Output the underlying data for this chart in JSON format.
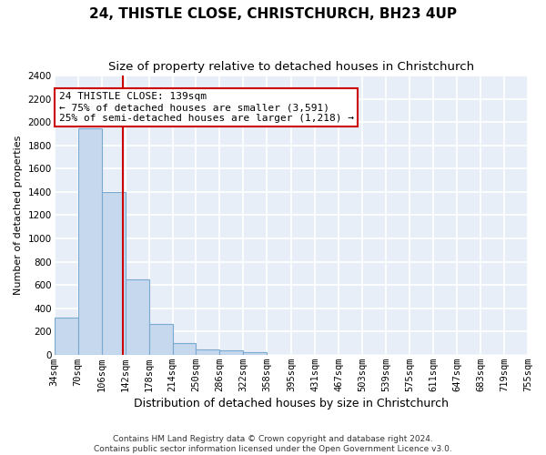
{
  "title": "24, THISTLE CLOSE, CHRISTCHURCH, BH23 4UP",
  "subtitle": "Size of property relative to detached houses in Christchurch",
  "xlabel": "Distribution of detached houses by size in Christchurch",
  "ylabel": "Number of detached properties",
  "footer_line1": "Contains HM Land Registry data © Crown copyright and database right 2024.",
  "footer_line2": "Contains public sector information licensed under the Open Government Licence v3.0.",
  "bar_edges": [
    34,
    70,
    106,
    142,
    178,
    214,
    250,
    286,
    322,
    358,
    395,
    431,
    467,
    503,
    539,
    575,
    611,
    647,
    683,
    719,
    755
  ],
  "bar_heights": [
    320,
    1950,
    1400,
    650,
    265,
    100,
    45,
    35,
    25,
    0,
    0,
    0,
    0,
    0,
    0,
    0,
    0,
    0,
    0,
    0
  ],
  "bar_color": "#c5d8ee",
  "bar_edge_color": "#7aaad0",
  "property_size": 139,
  "property_line_color": "#cc0000",
  "annotation_line1": "24 THISTLE CLOSE: 139sqm",
  "annotation_line2": "← 75% of detached houses are smaller (3,591)",
  "annotation_line3": "25% of semi-detached houses are larger (1,218) →",
  "annotation_box_color": "#cc0000",
  "ylim": [
    0,
    2400
  ],
  "yticks": [
    0,
    200,
    400,
    600,
    800,
    1000,
    1200,
    1400,
    1600,
    1800,
    2000,
    2200,
    2400
  ],
  "background_color": "#e8eef7",
  "grid_color": "#ffffff",
  "title_fontsize": 11,
  "subtitle_fontsize": 9.5,
  "xlabel_fontsize": 9,
  "ylabel_fontsize": 8,
  "tick_fontsize": 7.5,
  "annotation_fontsize": 8,
  "footer_fontsize": 6.5
}
